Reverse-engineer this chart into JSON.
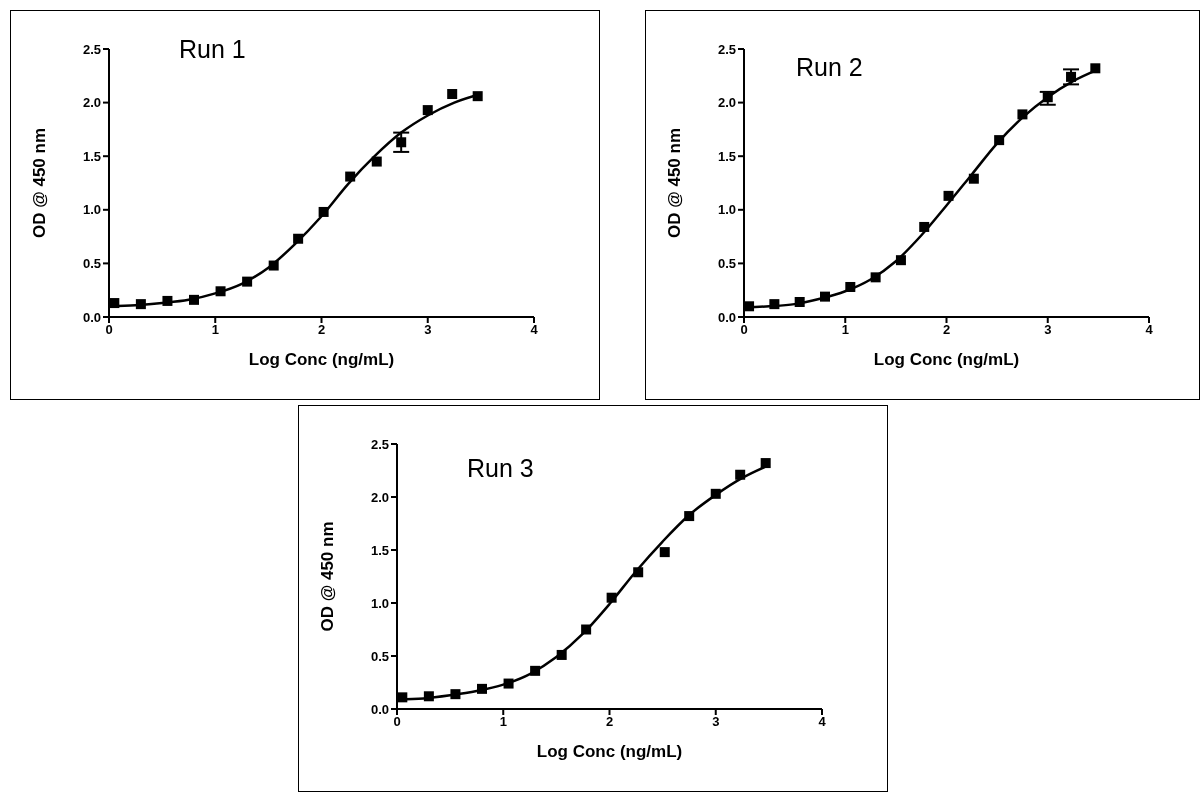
{
  "chart_data": [
    {
      "type": "scatter",
      "title": "Run 1",
      "xlabel": "Log Conc (ng/mL)",
      "ylabel": "OD @ 450 nm",
      "xlim": [
        0,
        4
      ],
      "xticks": [
        0,
        1,
        2,
        3,
        4
      ],
      "ylim": [
        0,
        2.5
      ],
      "yticks": [
        {
          "value": 0,
          "label": "0.0"
        },
        0.5,
        {
          "value": 1,
          "label": "1.0"
        },
        1.5,
        {
          "value": 2,
          "label": "2.0"
        },
        2.5
      ],
      "grid": false,
      "legend": false,
      "series": [
        {
          "color": "#000000",
          "marker": "square",
          "x": [
            0.05,
            0.3,
            0.55,
            0.8,
            1.05,
            1.3,
            1.55,
            1.78,
            2.02,
            2.27,
            2.52,
            2.75,
            3.0,
            3.23,
            3.47
          ],
          "values": [
            0.13,
            0.12,
            0.15,
            0.16,
            0.24,
            0.33,
            0.48,
            0.73,
            0.98,
            1.31,
            1.45,
            1.63,
            1.93,
            2.08,
            2.06
          ],
          "errors": [
            null,
            null,
            null,
            null,
            null,
            null,
            null,
            null,
            null,
            null,
            null,
            [
              1.54,
              1.72
            ],
            null,
            null,
            null
          ]
        },
        {
          "type": "line",
          "color": "#000000",
          "marker": "none",
          "x": [
            0,
            0.25,
            0.5,
            0.75,
            1.0,
            1.25,
            1.5,
            1.75,
            2.0,
            2.25,
            2.5,
            2.75,
            3.0,
            3.25,
            3.5
          ],
          "values": [
            0.1,
            0.11,
            0.13,
            0.16,
            0.22,
            0.31,
            0.46,
            0.68,
            0.94,
            1.24,
            1.5,
            1.72,
            1.88,
            2.0,
            2.08
          ]
        }
      ]
    },
    {
      "type": "scatter",
      "title": "Run 2",
      "xlabel": "Log Conc (ng/mL)",
      "ylabel": "OD @ 450 nm",
      "xlim": [
        0,
        4
      ],
      "xticks": [
        0,
        1,
        2,
        3,
        4
      ],
      "ylim": [
        0,
        2.5
      ],
      "yticks": [
        {
          "value": 0,
          "label": "0.0"
        },
        0.5,
        {
          "value": 1,
          "label": "1.0"
        },
        1.5,
        {
          "value": 2,
          "label": "2.0"
        },
        2.5
      ],
      "grid": false,
      "legend": false,
      "series": [
        {
          "color": "#000000",
          "marker": "square",
          "x": [
            0.05,
            0.3,
            0.55,
            0.8,
            1.05,
            1.3,
            1.55,
            1.78,
            2.02,
            2.27,
            2.52,
            2.75,
            3.0,
            3.23,
            3.47
          ],
          "values": [
            0.1,
            0.12,
            0.14,
            0.19,
            0.28,
            0.37,
            0.53,
            0.84,
            1.13,
            1.29,
            1.65,
            1.89,
            2.05,
            2.24,
            2.32
          ],
          "errors": [
            null,
            null,
            null,
            null,
            null,
            null,
            null,
            null,
            null,
            null,
            null,
            null,
            [
              1.98,
              2.1
            ],
            [
              2.17,
              2.31
            ],
            null
          ]
        },
        {
          "type": "line",
          "color": "#000000",
          "marker": "none",
          "x": [
            0,
            0.25,
            0.5,
            0.75,
            1.0,
            1.25,
            1.5,
            1.75,
            2.0,
            2.25,
            2.5,
            2.75,
            3.0,
            3.25,
            3.5
          ],
          "values": [
            0.09,
            0.1,
            0.12,
            0.17,
            0.24,
            0.35,
            0.52,
            0.76,
            1.04,
            1.33,
            1.62,
            1.86,
            2.05,
            2.2,
            2.31
          ]
        }
      ]
    },
    {
      "type": "scatter",
      "title": "Run 3",
      "xlabel": "Log Conc (ng/mL)",
      "ylabel": "OD @ 450 nm",
      "xlim": [
        0,
        4
      ],
      "xticks": [
        0,
        1,
        2,
        3,
        4
      ],
      "ylim": [
        0,
        2.5
      ],
      "yticks": [
        {
          "value": 0,
          "label": "0.0"
        },
        0.5,
        {
          "value": 1,
          "label": "1.0"
        },
        1.5,
        {
          "value": 2,
          "label": "2.0"
        },
        2.5
      ],
      "grid": false,
      "legend": false,
      "series": [
        {
          "color": "#000000",
          "marker": "square",
          "x": [
            0.05,
            0.3,
            0.55,
            0.8,
            1.05,
            1.3,
            1.55,
            1.78,
            2.02,
            2.27,
            2.52,
            2.75,
            3.0,
            3.23,
            3.47
          ],
          "values": [
            0.11,
            0.12,
            0.14,
            0.19,
            0.24,
            0.36,
            0.51,
            0.75,
            1.05,
            1.29,
            1.48,
            1.82,
            2.03,
            2.21,
            2.32
          ]
        },
        {
          "type": "line",
          "color": "#000000",
          "marker": "none",
          "x": [
            0,
            0.25,
            0.5,
            0.75,
            1.0,
            1.25,
            1.5,
            1.75,
            2.0,
            2.25,
            2.5,
            2.75,
            3.0,
            3.25,
            3.5
          ],
          "values": [
            0.09,
            0.1,
            0.13,
            0.17,
            0.23,
            0.33,
            0.49,
            0.71,
            0.99,
            1.3,
            1.58,
            1.83,
            2.02,
            2.18,
            2.3
          ]
        }
      ]
    }
  ]
}
